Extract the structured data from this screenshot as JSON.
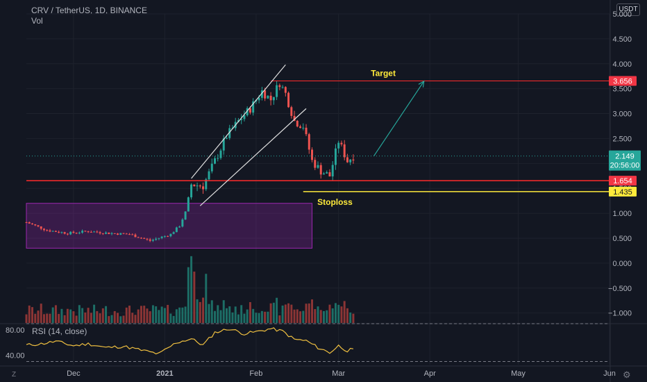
{
  "header": {
    "symbol_line": "CRV / TetherUS, 1D, BINANCE",
    "volume_label": "Vol",
    "currency": "USDT"
  },
  "colors": {
    "up": "#26a69a",
    "down": "#ef5350",
    "vol_up": "#1d6e66",
    "vol_down": "#8c3535",
    "level": "#ff2b2b",
    "stoploss": "#ffeb3b",
    "label_yellow": "#ffeb3b",
    "channel": "#e0e0e0",
    "arrow": "#26a69a",
    "box": "#9c27b0",
    "rsi": "#f0c040"
  },
  "chart_data": [
    {
      "type": "candlestick",
      "title": "CRV / TetherUS, 1D, BINANCE",
      "y_axis": {
        "min": -1.2,
        "max": 5.0,
        "ticks": [
          "5.000",
          "4.500",
          "4.000",
          "3.500",
          "3.000",
          "2.500",
          "2.000",
          "1.500",
          "1.000",
          "0.500",
          "0.000",
          "−0.500",
          "−1.000"
        ],
        "tick_values": [
          5.0,
          4.5,
          4.0,
          3.5,
          3.0,
          2.5,
          2.0,
          1.5,
          1.0,
          0.5,
          0.0,
          -0.5,
          -1.0
        ]
      },
      "x_axis": {
        "labels": [
          "Dec",
          "2021",
          "Feb",
          "Mar",
          "Apr",
          "May",
          "Jun"
        ],
        "dates": [
          "2020-12-01",
          "2021-01-01",
          "2021-02-01",
          "2021-03-01",
          "2021-04-01",
          "2021-05-01",
          "2021-06-01"
        ],
        "range": [
          "2020-11-15",
          "2021-06-01"
        ],
        "bold_labels": [
          "2021"
        ]
      },
      "close_series": {
        "dates": [
          "2020-11-15",
          "2020-11-22",
          "2020-11-29",
          "2020-12-06",
          "2020-12-13",
          "2020-12-20",
          "2020-12-27",
          "2021-01-03",
          "2021-01-06",
          "2021-01-08",
          "2021-01-10",
          "2021-01-14",
          "2021-01-18",
          "2021-01-22",
          "2021-01-26",
          "2021-01-30",
          "2021-02-03",
          "2021-02-06",
          "2021-02-09",
          "2021-02-11",
          "2021-02-14",
          "2021-02-17",
          "2021-02-20",
          "2021-02-23",
          "2021-02-26",
          "2021-03-01",
          "2021-03-04",
          "2021-03-06"
        ],
        "close": [
          0.82,
          0.66,
          0.6,
          0.64,
          0.6,
          0.58,
          0.45,
          0.58,
          0.75,
          1.02,
          1.58,
          1.55,
          2.05,
          2.55,
          2.85,
          3.1,
          3.45,
          3.28,
          3.62,
          3.4,
          2.85,
          2.75,
          2.05,
          1.85,
          1.75,
          2.45,
          2.05,
          2.15
        ]
      },
      "price_levels": [
        {
          "name": "target",
          "value": 3.656,
          "label": "3.656"
        },
        {
          "name": "resistance",
          "value": 1.654,
          "label": "1.654"
        },
        {
          "name": "stoploss",
          "value": 1.435,
          "label": "1.435"
        }
      ],
      "last_price": {
        "value": 2.149,
        "label": "2.149",
        "countdown": "20:56:00"
      },
      "annotations": {
        "target_text": "Target",
        "stoploss_text": "Stoploss",
        "accumulation_box": {
          "start": "2020-11-15",
          "end": "2021-02-20",
          "low": 0.3,
          "high": 1.2
        },
        "channel_upper": [
          [
            "2021-01-10",
            1.7
          ],
          [
            "2021-02-11",
            3.98
          ]
        ],
        "channel_lower": [
          [
            "2021-01-13",
            1.15
          ],
          [
            "2021-02-18",
            3.1
          ]
        ],
        "projection_arrow": [
          [
            "2021-03-13",
            2.15
          ],
          [
            "2021-03-30",
            3.65
          ]
        ]
      }
    },
    {
      "type": "line",
      "title": "RSI (14, close)",
      "ylim": [
        25,
        90
      ],
      "ticks": [
        "80.00",
        "40.00"
      ],
      "tick_values": [
        80,
        40
      ],
      "bands": [
        90,
        30
      ],
      "series": [
        {
          "dates": [
            "2020-11-15",
            "2020-11-20",
            "2020-11-25",
            "2020-12-01",
            "2020-12-06",
            "2020-12-12",
            "2020-12-18",
            "2020-12-24",
            "2020-12-30",
            "2021-01-05",
            "2021-01-10",
            "2021-01-14",
            "2021-01-18",
            "2021-01-23",
            "2021-01-28",
            "2021-02-02",
            "2021-02-06",
            "2021-02-10",
            "2021-02-14",
            "2021-02-18",
            "2021-02-22",
            "2021-02-26",
            "2021-03-01",
            "2021-03-04",
            "2021-03-06"
          ],
          "values": [
            56,
            58,
            62,
            55,
            58,
            52,
            54,
            48,
            42,
            60,
            66,
            56,
            76,
            82,
            74,
            78,
            82,
            78,
            65,
            63,
            52,
            44,
            55,
            47,
            50
          ]
        }
      ]
    }
  ]
}
